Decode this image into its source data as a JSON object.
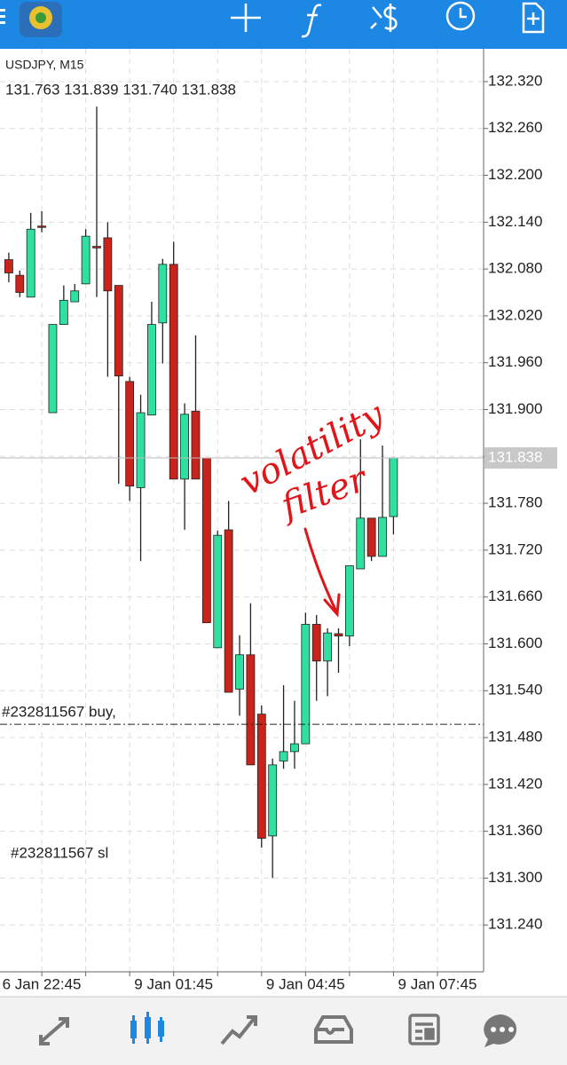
{
  "chart_data": {
    "type": "candlestick",
    "title": "USDJPY, M15",
    "subtitle": "131.763 131.839 131.740 131.838",
    "open": [
      132.092,
      132.072,
      132.044,
      132.135,
      131.896,
      132.009,
      132.038,
      132.061,
      132.109,
      132.12,
      132.059,
      131.936,
      131.8,
      131.893,
      132.011,
      132.086,
      131.811,
      131.898,
      131.838,
      131.595,
      131.746,
      131.542,
      131.586,
      131.51,
      131.354,
      131.45,
      131.462,
      131.472,
      131.625,
      131.578,
      131.613,
      131.61,
      131.696,
      131.761,
      131.712,
      131.763
    ],
    "high": [
      132.101,
      132.078,
      132.152,
      132.154,
      132.009,
      132.059,
      132.061,
      132.131,
      132.288,
      132.14,
      132.059,
      131.942,
      131.919,
      132.038,
      132.093,
      132.115,
      131.908,
      131.995,
      131.838,
      131.745,
      131.783,
      131.611,
      131.652,
      131.521,
      131.453,
      131.547,
      131.527,
      131.64,
      131.637,
      131.62,
      131.62,
      131.7,
      131.862,
      131.761,
      131.854,
      131.839
    ],
    "low": [
      132.063,
      132.044,
      132.044,
      132.127,
      131.896,
      132.009,
      132.038,
      132.061,
      132.044,
      131.942,
      131.805,
      131.783,
      131.706,
      131.893,
      131.959,
      131.811,
      131.746,
      131.811,
      131.627,
      131.595,
      131.538,
      131.508,
      131.445,
      131.339,
      131.3,
      131.44,
      131.44,
      131.472,
      131.527,
      131.533,
      131.563,
      131.597,
      131.696,
      131.706,
      131.712,
      131.74
    ],
    "close": [
      132.075,
      132.05,
      132.131,
      132.134,
      132.009,
      132.04,
      132.052,
      132.122,
      132.107,
      132.052,
      131.943,
      131.802,
      131.896,
      132.009,
      132.086,
      131.811,
      131.894,
      131.811,
      131.627,
      131.739,
      131.538,
      131.586,
      131.445,
      131.351,
      131.445,
      131.462,
      131.472,
      131.625,
      131.578,
      131.614,
      131.61,
      131.7,
      131.761,
      131.712,
      131.762,
      131.838
    ],
    "up_color": "#2fe0a0",
    "down_color": "#c9231b",
    "xlim": [
      -0.8,
      43.2
    ],
    "xticks": [
      {
        "value": 3,
        "label": "6 Jan 22:45"
      },
      {
        "value": 7,
        "label": null
      },
      {
        "value": 11,
        "label": null
      },
      {
        "value": 15,
        "label": "9 Jan 01:45"
      },
      {
        "value": 19,
        "label": null
      },
      {
        "value": 23,
        "label": null
      },
      {
        "value": 27,
        "label": "9 Jan 04:45"
      },
      {
        "value": 31,
        "label": null
      },
      {
        "value": 35,
        "label": null
      },
      {
        "value": 39,
        "label": "9 Jan 07:45"
      }
    ],
    "ylim": [
      131.18,
      132.362
    ],
    "yticks": [
      {
        "value": 132.32,
        "label": "132.320"
      },
      {
        "value": 132.26,
        "label": "132.260"
      },
      {
        "value": 132.2,
        "label": "132.200"
      },
      {
        "value": 132.14,
        "label": "132.140"
      },
      {
        "value": 132.08,
        "label": "132.080"
      },
      {
        "value": 132.02,
        "label": "132.020"
      },
      {
        "value": 131.96,
        "label": "131.960"
      },
      {
        "value": 131.9,
        "label": "131.900"
      },
      {
        "value": 131.84,
        "label": null
      },
      {
        "value": 131.78,
        "label": "131.780"
      },
      {
        "value": 131.72,
        "label": "131.720"
      },
      {
        "value": 131.66,
        "label": "131.660"
      },
      {
        "value": 131.6,
        "label": "131.600"
      },
      {
        "value": 131.54,
        "label": "131.540"
      },
      {
        "value": 131.48,
        "label": "131.480"
      },
      {
        "value": 131.42,
        "label": "131.420"
      },
      {
        "value": 131.36,
        "label": "131.360"
      },
      {
        "value": 131.3,
        "label": "131.300"
      },
      {
        "value": 131.24,
        "label": "131.240"
      }
    ],
    "grid": true,
    "current_price": {
      "value": 131.838,
      "label": "131.838"
    },
    "orders": [
      {
        "label": "#232811567 buy,",
        "price": 131.497
      }
    ],
    "annotations": [
      "#232811567 sl",
      "volatility",
      "filter"
    ]
  }
}
